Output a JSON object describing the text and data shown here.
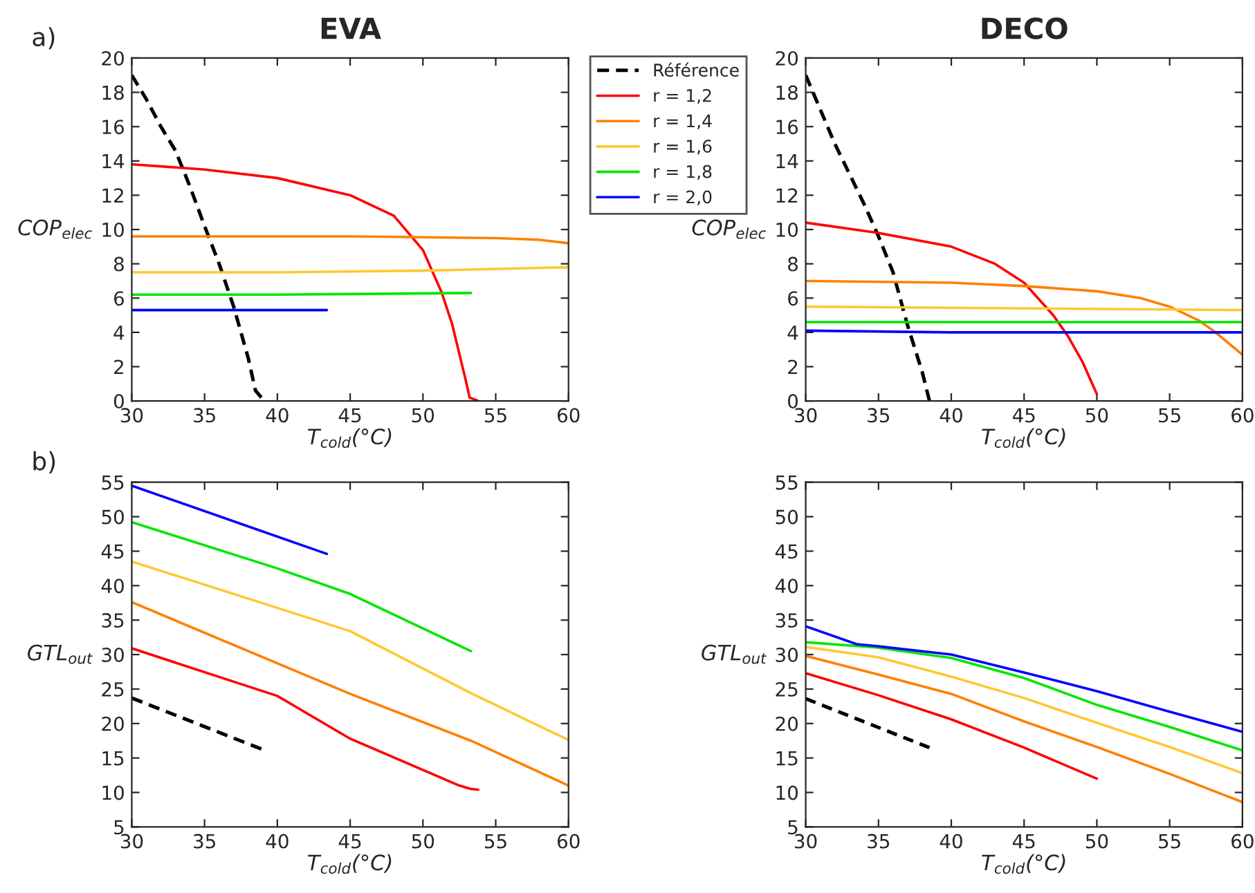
{
  "chart_data": [
    {
      "type": "line",
      "title": "EVA",
      "xlabel": "T$_{cold}$(°C)",
      "ylabel": "COP$_{elec}$",
      "annotations": [
        "a)"
      ],
      "xlim": [
        30,
        60
      ],
      "xticks": [
        30,
        35,
        40,
        45,
        50,
        55,
        60
      ],
      "ylim": [
        0,
        20
      ],
      "yticks": [
        0,
        2,
        4,
        6,
        8,
        10,
        12,
        14,
        16,
        18,
        20
      ],
      "legend": "right",
      "grid": false,
      "series": [
        {
          "name": "Référence",
          "color": "#000000",
          "line_style": "dashed",
          "x": [
            30,
            31,
            32,
            33,
            34,
            35,
            36,
            37,
            38,
            38.5,
            38.9
          ],
          "values": [
            19,
            17.6,
            16.0,
            14.6,
            12.5,
            10.2,
            8,
            5.5,
            2.5,
            0.6,
            0.2
          ]
        },
        {
          "name": "r = 1,2",
          "color": "#ff0000",
          "x": [
            30,
            35,
            40,
            45,
            48,
            50,
            51.3,
            52,
            53,
            53.2,
            53.8
          ],
          "values": [
            13.8,
            13.5,
            13.0,
            12.0,
            10.8,
            8.8,
            6.3,
            4.5,
            1.0,
            0.2,
            0
          ]
        },
        {
          "name": "r = 1,4",
          "color": "#ff8000",
          "x": [
            30,
            45,
            55,
            58,
            60
          ],
          "values": [
            9.6,
            9.6,
            9.5,
            9.4,
            9.2
          ]
        },
        {
          "name": "r = 1,6",
          "color": "#ffc832",
          "x": [
            30,
            40,
            50,
            60
          ],
          "values": [
            7.5,
            7.5,
            7.6,
            7.8
          ]
        },
        {
          "name": "r = 1,8",
          "color": "#00e600",
          "x": [
            30,
            40,
            53.3
          ],
          "values": [
            6.2,
            6.2,
            6.3
          ]
        },
        {
          "name": "r = 2,0",
          "color": "#0000ff",
          "x": [
            30,
            43.4
          ],
          "values": [
            5.3,
            5.3
          ]
        }
      ]
    },
    {
      "type": "line",
      "title": "DECO",
      "xlabel": "T$_{cold}$(°C)",
      "ylabel": "COP$_{elec}$",
      "xlim": [
        30,
        60
      ],
      "xticks": [
        30,
        35,
        40,
        45,
        50,
        55,
        60
      ],
      "ylim": [
        0,
        20
      ],
      "yticks": [
        0,
        2,
        4,
        6,
        8,
        10,
        12,
        14,
        16,
        18,
        20
      ],
      "grid": false,
      "series": [
        {
          "color": "#000000",
          "line_style": "dashed",
          "x": [
            30,
            32,
            34,
            35,
            36,
            37,
            38,
            38.5
          ],
          "values": [
            19,
            15,
            11.5,
            9.6,
            7.5,
            4.4,
            1.7,
            0
          ]
        },
        {
          "color": "#ff0000",
          "x": [
            30,
            35,
            40,
            43,
            45,
            47,
            48,
            49,
            50
          ],
          "values": [
            10.4,
            9.8,
            9.0,
            8.0,
            6.9,
            5.0,
            3.8,
            2.3,
            0.4
          ]
        },
        {
          "color": "#ff8000",
          "x": [
            30,
            40,
            45,
            50,
            53,
            55,
            57,
            58,
            59,
            60
          ],
          "values": [
            7.0,
            6.9,
            6.7,
            6.4,
            6.0,
            5.5,
            4.7,
            4.1,
            3.4,
            2.7
          ]
        },
        {
          "color": "#ffc832",
          "x": [
            30,
            60
          ],
          "values": [
            5.5,
            5.3
          ]
        },
        {
          "color": "#00e600",
          "x": [
            30,
            60
          ],
          "values": [
            4.6,
            4.6
          ]
        },
        {
          "color": "#0000ff",
          "x": [
            30,
            40,
            60
          ],
          "values": [
            4.1,
            4.0,
            4.0
          ]
        }
      ]
    },
    {
      "type": "line",
      "xlabel": "T$_{cold}$(°C)",
      "ylabel": "GTL$_{out}$",
      "annotations": [
        "b)"
      ],
      "xlim": [
        30,
        60
      ],
      "xticks": [
        30,
        35,
        40,
        45,
        50,
        55,
        60
      ],
      "ylim": [
        5,
        55
      ],
      "yticks": [
        5,
        10,
        15,
        20,
        25,
        30,
        35,
        40,
        45,
        50,
        55
      ],
      "grid": false,
      "series": [
        {
          "color": "#000000",
          "line_style": "dashed",
          "x": [
            30,
            38.9
          ],
          "values": [
            23.7,
            16.3
          ]
        },
        {
          "color": "#ff0000",
          "x": [
            30,
            40,
            45,
            52.5,
            53.3,
            53.8
          ],
          "values": [
            30.9,
            24.0,
            17.8,
            11.0,
            10.5,
            10.4
          ]
        },
        {
          "color": "#ff8000",
          "x": [
            30,
            45,
            53.3,
            60
          ],
          "values": [
            37.6,
            24.3,
            17.5,
            11.0
          ]
        },
        {
          "color": "#ffc832",
          "x": [
            30,
            45,
            53.3,
            60
          ],
          "values": [
            43.5,
            33.4,
            24.4,
            17.6
          ]
        },
        {
          "color": "#00e600",
          "x": [
            30,
            40,
            45,
            53.3
          ],
          "values": [
            49.2,
            42.5,
            38.8,
            30.5
          ]
        },
        {
          "color": "#0000ff",
          "x": [
            30,
            43.4
          ],
          "values": [
            54.5,
            44.6
          ]
        }
      ]
    },
    {
      "type": "line",
      "xlabel": "T$_{cold}$(°C)",
      "ylabel": "GTL$_{out}$",
      "xlim": [
        30,
        60
      ],
      "xticks": [
        30,
        35,
        40,
        45,
        50,
        55,
        60
      ],
      "ylim": [
        5,
        55
      ],
      "yticks": [
        5,
        10,
        15,
        20,
        25,
        30,
        35,
        40,
        45,
        50,
        55
      ],
      "grid": false,
      "series": [
        {
          "color": "#000000",
          "line_style": "dashed",
          "x": [
            30,
            38.5
          ],
          "values": [
            23.6,
            16.5
          ]
        },
        {
          "color": "#ff0000",
          "x": [
            30,
            35,
            40,
            45,
            50
          ],
          "values": [
            27.3,
            24.1,
            20.6,
            16.5,
            12.0
          ]
        },
        {
          "color": "#ff8000",
          "x": [
            30,
            35,
            40,
            45,
            50,
            55,
            60
          ],
          "values": [
            29.8,
            27.1,
            24.3,
            20.3,
            16.6,
            12.7,
            8.6
          ]
        },
        {
          "color": "#ffc832",
          "x": [
            30,
            35,
            40,
            45,
            50,
            55,
            60
          ],
          "values": [
            31.1,
            29.6,
            26.8,
            23.7,
            20.1,
            16.6,
            12.8
          ]
        },
        {
          "color": "#00e600",
          "x": [
            30,
            35,
            40,
            45,
            50,
            55,
            60
          ],
          "values": [
            31.8,
            31.0,
            29.5,
            26.6,
            22.7,
            19.5,
            16.1
          ]
        },
        {
          "color": "#0000ff",
          "x": [
            30,
            33.5,
            35,
            40,
            45,
            50,
            55,
            60
          ],
          "values": [
            34.1,
            31.5,
            31.2,
            30.0,
            27.4,
            24.7,
            21.7,
            18.8
          ]
        }
      ]
    }
  ]
}
